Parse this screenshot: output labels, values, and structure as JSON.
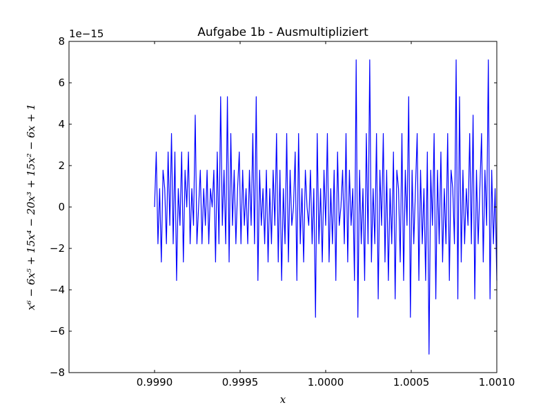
{
  "chart_data": {
    "type": "line",
    "title": "Aufgabe 1b - Ausmultipliziert",
    "xlabel": "x",
    "ylabel": "x⁶ − 6x⁵ + 15x⁴ − 20x³ + 15x² − 6x + 1",
    "offset_text": "1e−15",
    "xlim": [
      0.9985,
      1.001
    ],
    "ylim": [
      -8,
      8
    ],
    "x_range": [
      0.999,
      1.001
    ],
    "x_ticks": [
      0.999,
      0.9995,
      1.0,
      1.0005,
      1.001
    ],
    "x_tick_labels": [
      "0.9990",
      "0.9995",
      "1.0000",
      "1.0005",
      "1.0010"
    ],
    "y_ticks": [
      -8,
      -6,
      -4,
      -2,
      0,
      2,
      4,
      6,
      8
    ],
    "y_tick_labels": [
      "−8",
      "−6",
      "−4",
      "−2",
      "0",
      "2",
      "4",
      "6",
      "8"
    ],
    "series": [
      {
        "name": "polynomial",
        "color": "#0000ff",
        "values": [
          0,
          2.66,
          -1.78,
          0.89,
          -2.66,
          1.78,
          0.89,
          -1.78,
          2.66,
          -0.89,
          3.55,
          -1.78,
          2.66,
          -3.55,
          0.89,
          -0.89,
          2.66,
          -2.66,
          1.78,
          0,
          2.66,
          -1.78,
          0.89,
          -0.89,
          4.44,
          -1.78,
          0,
          1.78,
          -1.78,
          0.89,
          -0.89,
          1.78,
          -1.78,
          0.89,
          0,
          1.78,
          -2.66,
          2.66,
          -1.78,
          5.33,
          -0.89,
          1.78,
          -1.78,
          5.33,
          -2.66,
          3.55,
          -0.89,
          1.78,
          -1.78,
          0.89,
          2.66,
          -1.78,
          1.78,
          -0.89,
          0.89,
          -1.78,
          1.78,
          -0.89,
          3.55,
          -1.78,
          5.33,
          -3.55,
          1.78,
          -0.89,
          0.89,
          -1.78,
          1.78,
          -2.66,
          0.89,
          -1.78,
          1.78,
          -0.89,
          3.55,
          -2.66,
          1.78,
          -3.55,
          0.89,
          -1.78,
          3.55,
          -2.66,
          1.78,
          -0.89,
          0,
          2.66,
          -3.55,
          3.55,
          -1.78,
          0.89,
          -2.66,
          1.78,
          0,
          -0.89,
          1.78,
          -1.78,
          0.89,
          -5.33,
          3.55,
          -1.78,
          0.89,
          -2.66,
          1.78,
          -0.89,
          3.55,
          -2.66,
          0.89,
          -1.78,
          1.78,
          -3.55,
          2.66,
          -0.89,
          0,
          1.78,
          -1.78,
          3.55,
          -2.66,
          1.78,
          -0.89,
          0.89,
          -3.55,
          7.11,
          -5.33,
          1.78,
          -1.78,
          0.89,
          -3.55,
          3.55,
          -1.78,
          7.11,
          -2.66,
          0.89,
          -1.78,
          3.55,
          -4.44,
          1.78,
          -0.89,
          3.55,
          -2.66,
          1.78,
          -3.55,
          0.89,
          -1.78,
          2.66,
          -4.44,
          1.78,
          0.89,
          -2.66,
          3.55,
          -3.55,
          1.78,
          -0.89,
          5.33,
          -5.33,
          1.78,
          -1.78,
          0.89,
          3.55,
          -3.55,
          1.78,
          -1.78,
          0.89,
          -3.55,
          2.66,
          -7.11,
          1.78,
          -0.89,
          3.55,
          -4.44,
          1.78,
          -1.78,
          2.66,
          -2.66,
          0.89,
          -1.78,
          3.55,
          -3.55,
          1.78,
          0.89,
          -1.78,
          7.11,
          -4.44,
          5.33,
          -2.66,
          1.78,
          -1.78,
          0.89,
          -0.89,
          3.55,
          -1.78,
          4.44,
          -4.44,
          1.78,
          -1.78,
          0.89,
          3.55,
          -2.66,
          1.78,
          -0.89,
          7.11,
          -4.44,
          1.78,
          -1.78,
          0.89,
          -3.55
        ]
      }
    ],
    "grid": false,
    "legend": "none"
  }
}
